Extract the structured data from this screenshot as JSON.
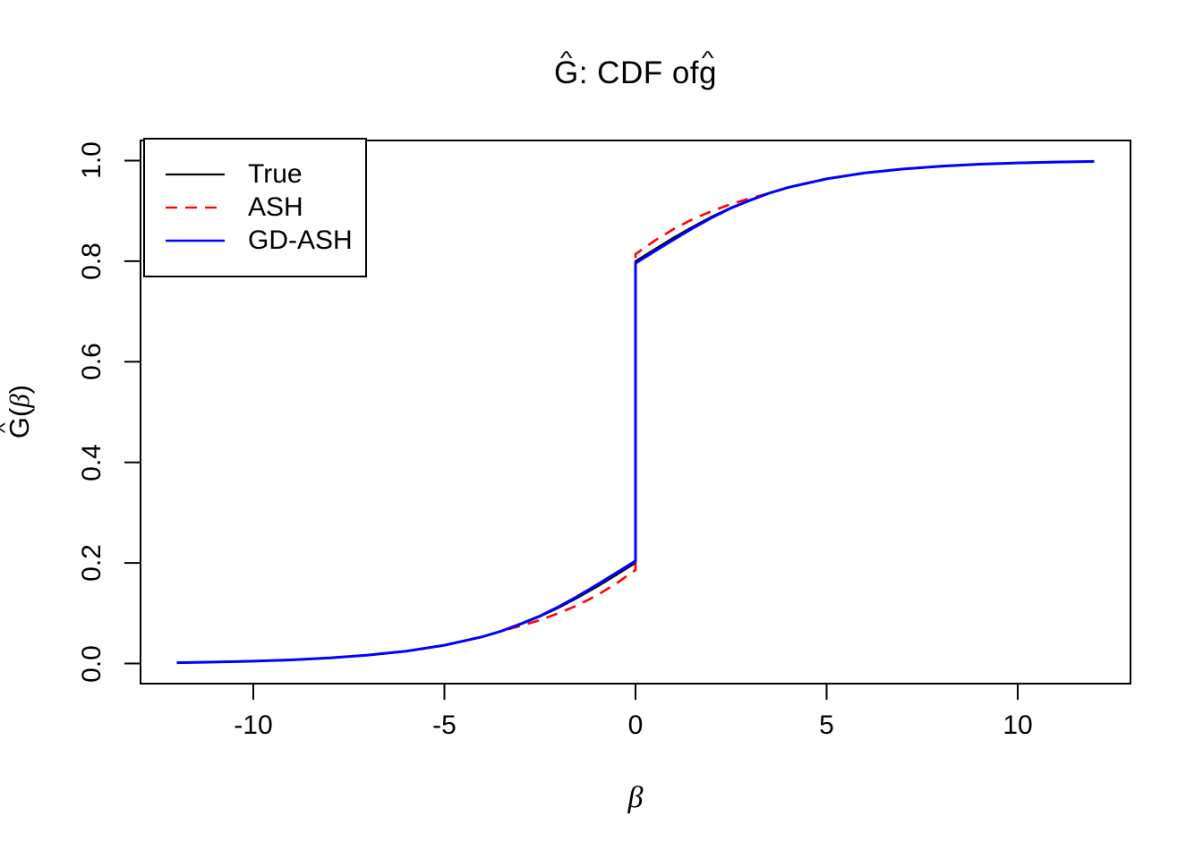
{
  "title_parts": {
    "hat": "^",
    "g_upper": "G",
    "middle": ": CDF of ",
    "g_lower": "g"
  },
  "ylabel_parts": {
    "hat": "^",
    "letter": "G",
    "open_paren": "(",
    "beta": "β",
    "close_paren": ")"
  },
  "xlabel_parts": {
    "beta": "β"
  },
  "chart_data": {
    "type": "line",
    "title": "Ĝ: CDF of ĝ",
    "xlabel": "β",
    "ylabel": "Ĝ(β)",
    "xlim": [
      -12.95,
      12.95
    ],
    "ylim": [
      -0.04,
      1.04
    ],
    "grid": false,
    "legend_position": "top-left",
    "background": "#ffffff",
    "axis_color": "#000000",
    "x_ticks": [
      {
        "v": -10,
        "label": "-10"
      },
      {
        "v": -5,
        "label": "-5"
      },
      {
        "v": 0,
        "label": "0"
      },
      {
        "v": 5,
        "label": "5"
      },
      {
        "v": 10,
        "label": "10"
      }
    ],
    "y_ticks": [
      {
        "v": 0.0,
        "label": "0.0"
      },
      {
        "v": 0.2,
        "label": "0.2"
      },
      {
        "v": 0.4,
        "label": "0.4"
      },
      {
        "v": 0.6,
        "label": "0.6"
      },
      {
        "v": 0.8,
        "label": "0.8"
      },
      {
        "v": 1.0,
        "label": "1.0"
      }
    ],
    "description": "CDF with point mass 0.6 at zero: jump from ~0.2 to ~0.8 at x=0; smooth symmetric tails reaching ~0 at -12 and ~1 at +12.",
    "series": [
      {
        "name": "True",
        "color": "#000000",
        "style": "solid",
        "width": 2.2,
        "points": [
          [
            -12,
            0.0016
          ],
          [
            -11,
            0.0028
          ],
          [
            -10,
            0.0046
          ],
          [
            -9,
            0.0072
          ],
          [
            -8,
            0.0111
          ],
          [
            -7,
            0.0167
          ],
          [
            -6,
            0.0246
          ],
          [
            -5,
            0.0363
          ],
          [
            -4,
            0.0533
          ],
          [
            -3.5,
            0.0646
          ],
          [
            -3,
            0.0779
          ],
          [
            -2.5,
            0.0934
          ],
          [
            -2,
            0.1113
          ],
          [
            -1.5,
            0.1313
          ],
          [
            -1,
            0.153
          ],
          [
            -0.5,
            0.1762
          ],
          [
            0,
            0.2
          ],
          [
            0,
            0.8
          ],
          [
            0.5,
            0.8238
          ],
          [
            1,
            0.847
          ],
          [
            1.5,
            0.8687
          ],
          [
            2,
            0.8887
          ],
          [
            2.5,
            0.9066
          ],
          [
            3,
            0.9221
          ],
          [
            3.5,
            0.9354
          ],
          [
            4,
            0.9467
          ],
          [
            5,
            0.9637
          ],
          [
            6,
            0.9754
          ],
          [
            7,
            0.9833
          ],
          [
            8,
            0.9889
          ],
          [
            9,
            0.9928
          ],
          [
            10,
            0.9954
          ],
          [
            11,
            0.9972
          ],
          [
            12,
            0.9984
          ]
        ]
      },
      {
        "name": "ASH",
        "color": "#ff0000",
        "style": "dashed",
        "width": 2.6,
        "points": [
          [
            -12,
            0.0016
          ],
          [
            -11,
            0.0028
          ],
          [
            -10,
            0.0046
          ],
          [
            -9,
            0.0072
          ],
          [
            -8,
            0.0111
          ],
          [
            -7,
            0.0167
          ],
          [
            -6,
            0.0246
          ],
          [
            -5,
            0.0363
          ],
          [
            -4,
            0.0533
          ],
          [
            -3.5,
            0.0646
          ],
          [
            -3,
            0.0749
          ],
          [
            -2.5,
            0.0864
          ],
          [
            -2,
            0.1003
          ],
          [
            -1.5,
            0.1163
          ],
          [
            -1,
            0.136
          ],
          [
            -0.5,
            0.1592
          ],
          [
            0,
            0.186
          ],
          [
            0,
            0.814
          ],
          [
            0.5,
            0.8408
          ],
          [
            1,
            0.864
          ],
          [
            1.5,
            0.8837
          ],
          [
            2,
            0.8997
          ],
          [
            2.5,
            0.9136
          ],
          [
            3,
            0.9251
          ],
          [
            3.5,
            0.9354
          ],
          [
            4,
            0.9467
          ],
          [
            5,
            0.9637
          ],
          [
            6,
            0.9754
          ],
          [
            7,
            0.9833
          ],
          [
            8,
            0.9889
          ],
          [
            9,
            0.9928
          ],
          [
            10,
            0.9954
          ],
          [
            11,
            0.9972
          ],
          [
            12,
            0.9984
          ]
        ]
      },
      {
        "name": "GD-ASH",
        "color": "#0000ff",
        "style": "solid",
        "width": 3,
        "points": [
          [
            -12,
            0.0016
          ],
          [
            -11,
            0.0028
          ],
          [
            -10,
            0.0046
          ],
          [
            -9,
            0.0072
          ],
          [
            -8,
            0.0111
          ],
          [
            -7,
            0.0167
          ],
          [
            -6,
            0.0246
          ],
          [
            -5,
            0.0363
          ],
          [
            -4,
            0.0533
          ],
          [
            -3.5,
            0.0646
          ],
          [
            -3,
            0.0789
          ],
          [
            -2.5,
            0.0944
          ],
          [
            -2,
            0.1133
          ],
          [
            -1.5,
            0.1343
          ],
          [
            -1,
            0.157
          ],
          [
            -0.5,
            0.1802
          ],
          [
            0,
            0.204
          ],
          [
            0,
            0.796
          ],
          [
            0.5,
            0.8198
          ],
          [
            1,
            0.843
          ],
          [
            1.5,
            0.8657
          ],
          [
            2,
            0.8867
          ],
          [
            2.5,
            0.9056
          ],
          [
            3,
            0.9211
          ],
          [
            3.5,
            0.9354
          ],
          [
            4,
            0.9467
          ],
          [
            5,
            0.9637
          ],
          [
            6,
            0.9754
          ],
          [
            7,
            0.9833
          ],
          [
            8,
            0.9889
          ],
          [
            9,
            0.9928
          ],
          [
            10,
            0.9954
          ],
          [
            11,
            0.9972
          ],
          [
            12,
            0.9984
          ]
        ]
      }
    ]
  }
}
